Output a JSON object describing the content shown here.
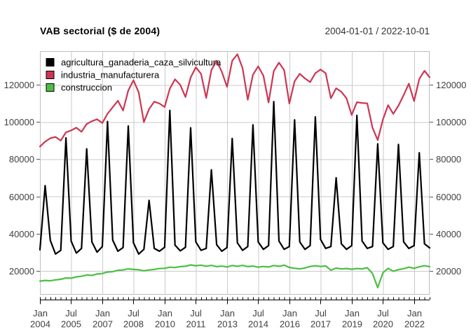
{
  "header": {
    "title": "VAB sectorial ($ de 2004)",
    "date_range": "2004-01-01 / 2022-10-01"
  },
  "legend": {
    "items": [
      {
        "label": "agricultura_ganaderia_caza_silvicultura",
        "color": "#000000"
      },
      {
        "label": "industria_manufacturera",
        "color": "#CD3653"
      },
      {
        "label": "construccion",
        "color": "#4BBF43"
      }
    ]
  },
  "chart_data": {
    "type": "line",
    "title": "VAB sectorial ($ de 2004)",
    "period_label": "2004-01-01 / 2022-10-01",
    "frequency": "quarterly",
    "x_start": "2004-01-01",
    "x_end": "2022-10-01",
    "n_points": 76,
    "grid": true,
    "legend_position": "top-left",
    "ylim": [
      7100,
      138200
    ],
    "y_ticks": [
      20000,
      40000,
      60000,
      80000,
      100000,
      120000
    ],
    "y_tick_labels": [
      "20000",
      "40000",
      "60000",
      "80000",
      "100000",
      "120000"
    ],
    "x_major_every_quarters": 6,
    "x_tick_labels": [
      {
        "mon": "Jan",
        "year": "2004"
      },
      {
        "mon": "Jul",
        "year": "2005"
      },
      {
        "mon": "Jan",
        "year": "2007"
      },
      {
        "mon": "Jul",
        "year": "2008"
      },
      {
        "mon": "Jan",
        "year": "2010"
      },
      {
        "mon": "Jul",
        "year": "2011"
      },
      {
        "mon": "Jan",
        "year": "2013"
      },
      {
        "mon": "Jul",
        "year": "2014"
      },
      {
        "mon": "Jan",
        "year": "2016"
      },
      {
        "mon": "Jul",
        "year": "2017"
      },
      {
        "mon": "Jan",
        "year": "2019"
      },
      {
        "mon": "Jul",
        "year": "2020"
      },
      {
        "mon": "Jan",
        "year": "2022"
      }
    ],
    "series": [
      {
        "name": "agricultura_ganaderia_caza_silvicultura",
        "color": "#000000",
        "values": [
          31300,
          65800,
          36300,
          29000,
          31000,
          91500,
          36000,
          29500,
          32000,
          85600,
          35500,
          30000,
          33000,
          100300,
          36500,
          30500,
          32500,
          97900,
          35000,
          29000,
          31500,
          57900,
          32000,
          30500,
          32600,
          106300,
          33800,
          30700,
          32600,
          96900,
          35500,
          31000,
          32000,
          74300,
          34000,
          30500,
          32500,
          91200,
          35000,
          31000,
          33000,
          98500,
          35500,
          31500,
          33500,
          111000,
          36000,
          31500,
          33000,
          101200,
          35500,
          31500,
          33500,
          102800,
          36900,
          32000,
          33000,
          70000,
          34500,
          31500,
          33500,
          103600,
          36000,
          32000,
          33000,
          88300,
          35000,
          31500,
          33000,
          88000,
          35500,
          32000,
          33500,
          83500,
          34500,
          32300
        ]
      },
      {
        "name": "industria_manufacturera",
        "color": "#CD3653",
        "values": [
          86800,
          89500,
          91300,
          92000,
          90000,
          94500,
          95500,
          97000,
          94800,
          99000,
          100500,
          101500,
          99500,
          104500,
          108000,
          111500,
          106200,
          117000,
          122500,
          116000,
          100000,
          107000,
          111000,
          110000,
          108100,
          118000,
          123000,
          120000,
          113500,
          124000,
          129500,
          126000,
          113000,
          128000,
          133000,
          127000,
          119000,
          133000,
          136500,
          129000,
          112000,
          125500,
          130000,
          125000,
          110500,
          127500,
          132000,
          128000,
          110000,
          122000,
          126000,
          123500,
          121500,
          126300,
          128300,
          126300,
          112800,
          118200,
          116300,
          112800,
          103800,
          110700,
          110300,
          110100,
          96900,
          90300,
          101300,
          109100,
          104400,
          108800,
          114500,
          120700,
          111300,
          123200,
          127600,
          124100
        ]
      },
      {
        "name": "construccion",
        "color": "#4BBF43",
        "values": [
          14400,
          14800,
          14600,
          15100,
          15400,
          16100,
          16000,
          16700,
          17000,
          17700,
          17500,
          18200,
          18500,
          19300,
          19500,
          20200,
          20400,
          21000,
          20700,
          20500,
          20000,
          20400,
          20700,
          21200,
          21300,
          21900,
          21700,
          22200,
          22400,
          23100,
          22700,
          23000,
          22400,
          22900,
          22200,
          22500,
          22000,
          22800,
          22400,
          22900,
          22200,
          22500,
          21900,
          22300,
          22000,
          22800,
          22400,
          23000,
          21800,
          21300,
          21000,
          21500,
          22300,
          22700,
          22300,
          22600,
          20300,
          21400,
          21000,
          21200,
          20800,
          21200,
          21000,
          21600,
          18500,
          10900,
          18900,
          21300,
          19700,
          20600,
          21100,
          21900,
          21300,
          22100,
          22700,
          22200
        ]
      }
    ],
    "style": {
      "grid_color": "#C9C9C9",
      "box_color": "#BDBDBD",
      "axis_color": "#000000",
      "tick_label_color": "#404040",
      "line_width": 2.2
    }
  }
}
